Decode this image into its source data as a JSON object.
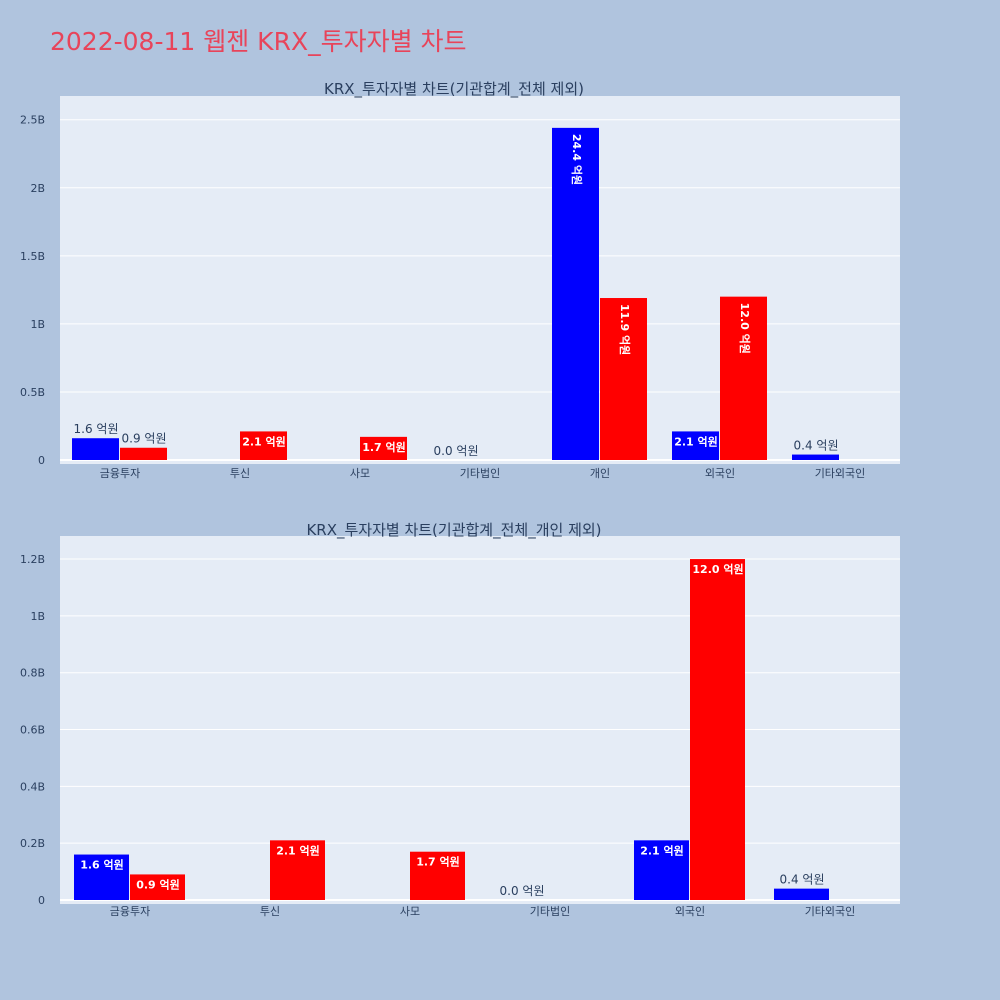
{
  "page": {
    "title": "2022-08-11 웹젠 KRX_투자자별 차트",
    "title_color": "#e8445a",
    "background": "#b0c4de",
    "plot_background": "#e5ecf6"
  },
  "chart_data": [
    {
      "type": "bar",
      "title": "KRX_투자자별 차트(기관합계_전체 제외)",
      "categories": [
        "금융투자",
        "투신",
        "사모",
        "기타법인",
        "개인",
        "외국인",
        "기타외국인"
      ],
      "series": [
        {
          "color": "#0000ff",
          "values": [
            160000000,
            0,
            0,
            0,
            2440000000,
            210000000,
            40000000
          ],
          "labels": [
            "1.6 억원",
            "",
            "",
            "0.0 억원",
            "24.4 억원",
            "2.1 억원",
            "0.4 억원"
          ]
        },
        {
          "color": "#ff0000",
          "values": [
            90000000,
            210000000,
            170000000,
            0,
            1190000000,
            1200000000,
            0
          ],
          "labels": [
            "0.9 억원",
            "2.1 억원",
            "1.7 억원",
            "",
            "11.9 억원",
            "12.0 억원",
            ""
          ]
        }
      ],
      "ylim": [
        0,
        2630000000
      ],
      "yticks": [
        0,
        500000000,
        1000000000,
        1500000000,
        2000000000,
        2500000000
      ],
      "ytick_labels": [
        "0",
        "0.5B",
        "1B",
        "1.5B",
        "2B",
        "2.5B"
      ],
      "grid": true
    },
    {
      "type": "bar",
      "title": "KRX_투자자별 차트(기관합계_전체_개인 제외)",
      "categories": [
        "금융투자",
        "투신",
        "사모",
        "기타법인",
        "외국인",
        "기타외국인"
      ],
      "series": [
        {
          "color": "#0000ff",
          "values": [
            160000000,
            0,
            0,
            0,
            210000000,
            40000000
          ],
          "labels": [
            "1.6 억원",
            "",
            "",
            "0.0 억원",
            "2.1 억원",
            "0.4 억원"
          ]
        },
        {
          "color": "#ff0000",
          "values": [
            90000000,
            210000000,
            170000000,
            0,
            1200000000,
            0
          ],
          "labels": [
            "0.9 억원",
            "2.1 억원",
            "1.7 억원",
            "",
            "12.0 억원",
            ""
          ]
        }
      ],
      "ylim": [
        0,
        1260000000
      ],
      "yticks": [
        0,
        200000000,
        400000000,
        600000000,
        800000000,
        1000000000,
        1200000000
      ],
      "ytick_labels": [
        "0",
        "0.2B",
        "0.4B",
        "0.6B",
        "0.8B",
        "1B",
        "1.2B"
      ],
      "grid": true
    }
  ]
}
